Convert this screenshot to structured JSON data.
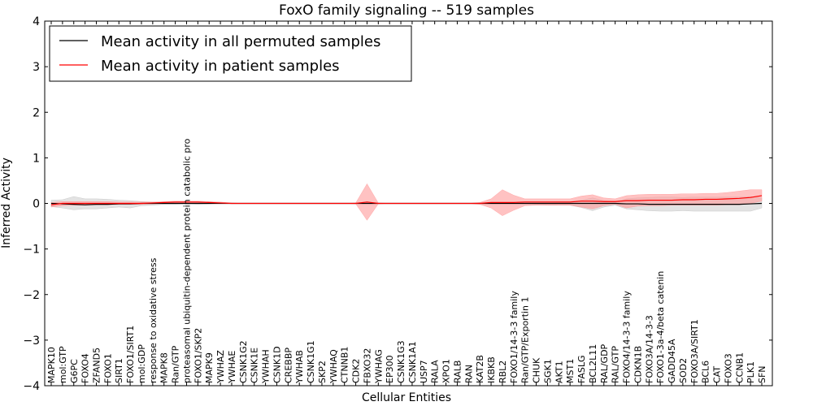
{
  "chart_data": {
    "type": "line",
    "title": "FoxO family signaling -- 519 samples",
    "xlabel": "Cellular Entities",
    "ylabel": "Inferred Activity",
    "ylim": [
      -4,
      4
    ],
    "yticks": [
      -4,
      -3,
      -2,
      -1,
      0,
      1,
      2,
      3,
      4
    ],
    "ytick_labels": [
      "−4",
      "−3",
      "−2",
      "−1",
      "0",
      "1",
      "2",
      "3",
      "4"
    ],
    "legend_position": "top-left",
    "categories": [
      "MAPK10",
      "mol:GTP",
      "G6PC",
      "FOXO4",
      "ZFAND5",
      "FOXO1",
      "SIRT1",
      "FOXO1/SIRT1",
      "mol:GDP",
      "response to oxidative stress",
      "MAPK8",
      "Ran/GTP",
      "proteasomal ubiquitin-dependent protein catabolic pro",
      "FOXO1/SKP2",
      "MAPK9",
      "YWHAZ",
      "YWHAE",
      "CSNK1G2",
      "CSNK1E",
      "YWHAH",
      "CSNK1D",
      "CREBBP",
      "YWHAB",
      "CSNK1G1",
      "SKP2",
      "YWHAQ",
      "CTNNB1",
      "CDK2",
      "FBXO32",
      "YWHAG",
      "EP300",
      "CSNK1G3",
      "CSNK1A1",
      "USP7",
      "RALA",
      "XPO1",
      "RALB",
      "RAN",
      "KAT2B",
      "IKBKB",
      "RBL2",
      "FOXO1/14-3-3 family",
      "Ran/GTP/Exportin 1",
      "CHUK",
      "SGK1",
      "AKT1",
      "MST1",
      "FASLG",
      "BCL2L11",
      "RAL/GDP",
      "RAL/GTP",
      "FOXO4/14-3-3 family",
      "CDKN1B",
      "FOXO3A/14-3-3",
      "FOXO1-3a-4/beta catenin",
      "GADD45A",
      "SOD2",
      "FOXO3A/SIRT1",
      "BCL6",
      "CAT",
      "FOXO3",
      "CCNB1",
      "PLK1",
      "SFN"
    ],
    "series": [
      {
        "name": "Mean activity in all permuted samples",
        "color": "#000000",
        "band_color": "#c0c0c0",
        "values": [
          0.0,
          -0.01,
          -0.02,
          -0.03,
          -0.02,
          -0.02,
          -0.01,
          -0.01,
          0.0,
          0.0,
          0.0,
          0.0,
          0.0,
          0.0,
          0.0,
          0.0,
          0.0,
          0.0,
          0.0,
          0.0,
          0.0,
          0.0,
          0.0,
          0.0,
          0.0,
          0.0,
          0.0,
          0.0,
          0.0,
          0.0,
          0.0,
          0.0,
          0.0,
          0.0,
          0.0,
          0.0,
          0.0,
          0.0,
          0.0,
          0.0,
          0.0,
          0.0,
          0.0,
          0.0,
          0.0,
          0.0,
          0.0,
          0.0,
          0.0,
          0.0,
          0.0,
          -0.01,
          -0.01,
          -0.02,
          -0.02,
          -0.02,
          -0.02,
          -0.02,
          -0.02,
          -0.02,
          -0.02,
          -0.02,
          -0.01,
          0.0
        ],
        "lower": [
          -0.07,
          -0.1,
          -0.14,
          -0.12,
          -0.12,
          -0.1,
          -0.08,
          -0.1,
          -0.05,
          -0.04,
          -0.02,
          -0.02,
          -0.01,
          -0.02,
          -0.01,
          0.0,
          0.0,
          0.0,
          0.0,
          0.0,
          0.0,
          0.0,
          0.0,
          0.0,
          0.0,
          0.0,
          0.0,
          0.0,
          0.0,
          0.0,
          0.0,
          0.0,
          0.0,
          0.0,
          0.0,
          0.0,
          0.0,
          0.0,
          0.0,
          0.0,
          0.0,
          0.0,
          -0.01,
          -0.02,
          -0.03,
          -0.04,
          -0.04,
          -0.09,
          -0.16,
          -0.08,
          -0.04,
          -0.12,
          -0.14,
          -0.16,
          -0.17,
          -0.17,
          -0.16,
          -0.17,
          -0.17,
          -0.17,
          -0.17,
          -0.17,
          -0.17,
          -0.1
        ],
        "upper": [
          0.07,
          0.08,
          0.15,
          0.1,
          0.1,
          0.09,
          0.07,
          0.06,
          0.04,
          0.03,
          0.02,
          0.02,
          0.01,
          0.01,
          0.01,
          0.0,
          0.0,
          0.0,
          0.0,
          0.0,
          0.0,
          0.0,
          0.0,
          0.0,
          0.0,
          0.0,
          0.0,
          0.0,
          0.0,
          0.0,
          0.0,
          0.0,
          0.0,
          0.0,
          0.0,
          0.0,
          0.0,
          0.0,
          0.0,
          0.0,
          0.0,
          0.0,
          0.01,
          0.02,
          0.03,
          0.04,
          0.04,
          0.07,
          0.12,
          0.06,
          0.04,
          0.1,
          0.12,
          0.13,
          0.14,
          0.14,
          0.13,
          0.14,
          0.14,
          0.14,
          0.14,
          0.14,
          0.15,
          0.12
        ]
      },
      {
        "name": "Mean activity in patient samples",
        "color": "#ff0000",
        "band_color": "#ff9999",
        "values": [
          -0.03,
          0.0,
          0.0,
          0.0,
          0.0,
          0.0,
          0.0,
          0.0,
          0.0,
          0.01,
          0.02,
          0.03,
          0.03,
          0.03,
          0.02,
          0.01,
          0.0,
          0.0,
          0.0,
          0.0,
          0.0,
          0.0,
          0.0,
          0.0,
          0.0,
          0.0,
          0.0,
          0.0,
          0.03,
          0.0,
          0.0,
          0.0,
          0.0,
          0.0,
          0.0,
          0.0,
          0.0,
          0.0,
          0.0,
          0.02,
          0.02,
          0.02,
          0.03,
          0.03,
          0.03,
          0.03,
          0.03,
          0.05,
          0.05,
          0.04,
          0.04,
          0.06,
          0.06,
          0.07,
          0.07,
          0.07,
          0.08,
          0.08,
          0.09,
          0.09,
          0.1,
          0.11,
          0.13,
          0.17
        ],
        "lower": [
          -0.08,
          -0.05,
          -0.04,
          -0.04,
          -0.03,
          -0.03,
          -0.02,
          -0.02,
          -0.02,
          -0.01,
          0.0,
          0.01,
          0.01,
          0.01,
          0.01,
          0.0,
          0.0,
          0.0,
          0.0,
          0.0,
          0.0,
          0.0,
          0.0,
          0.0,
          0.0,
          0.0,
          0.0,
          -0.01,
          -0.37,
          -0.01,
          0.0,
          0.0,
          0.0,
          0.0,
          0.0,
          0.0,
          0.0,
          0.0,
          -0.02,
          -0.1,
          -0.27,
          -0.15,
          -0.05,
          -0.04,
          -0.04,
          -0.04,
          -0.04,
          -0.08,
          -0.12,
          -0.05,
          -0.02,
          -0.1,
          -0.06,
          -0.05,
          -0.05,
          -0.04,
          -0.04,
          -0.04,
          -0.04,
          -0.04,
          -0.03,
          -0.03,
          0.0,
          0.05
        ],
        "upper": [
          0.02,
          0.04,
          0.04,
          0.04,
          0.04,
          0.04,
          0.03,
          0.03,
          0.03,
          0.03,
          0.04,
          0.05,
          0.05,
          0.05,
          0.04,
          0.03,
          0.01,
          0.0,
          0.0,
          0.0,
          0.0,
          0.0,
          0.0,
          0.0,
          0.0,
          0.0,
          0.0,
          0.01,
          0.43,
          0.01,
          0.0,
          0.0,
          0.0,
          0.0,
          0.0,
          0.0,
          0.0,
          0.0,
          0.02,
          0.1,
          0.3,
          0.18,
          0.1,
          0.1,
          0.1,
          0.1,
          0.1,
          0.16,
          0.19,
          0.12,
          0.1,
          0.17,
          0.19,
          0.2,
          0.2,
          0.2,
          0.21,
          0.21,
          0.22,
          0.22,
          0.24,
          0.27,
          0.3,
          0.3
        ]
      }
    ]
  }
}
